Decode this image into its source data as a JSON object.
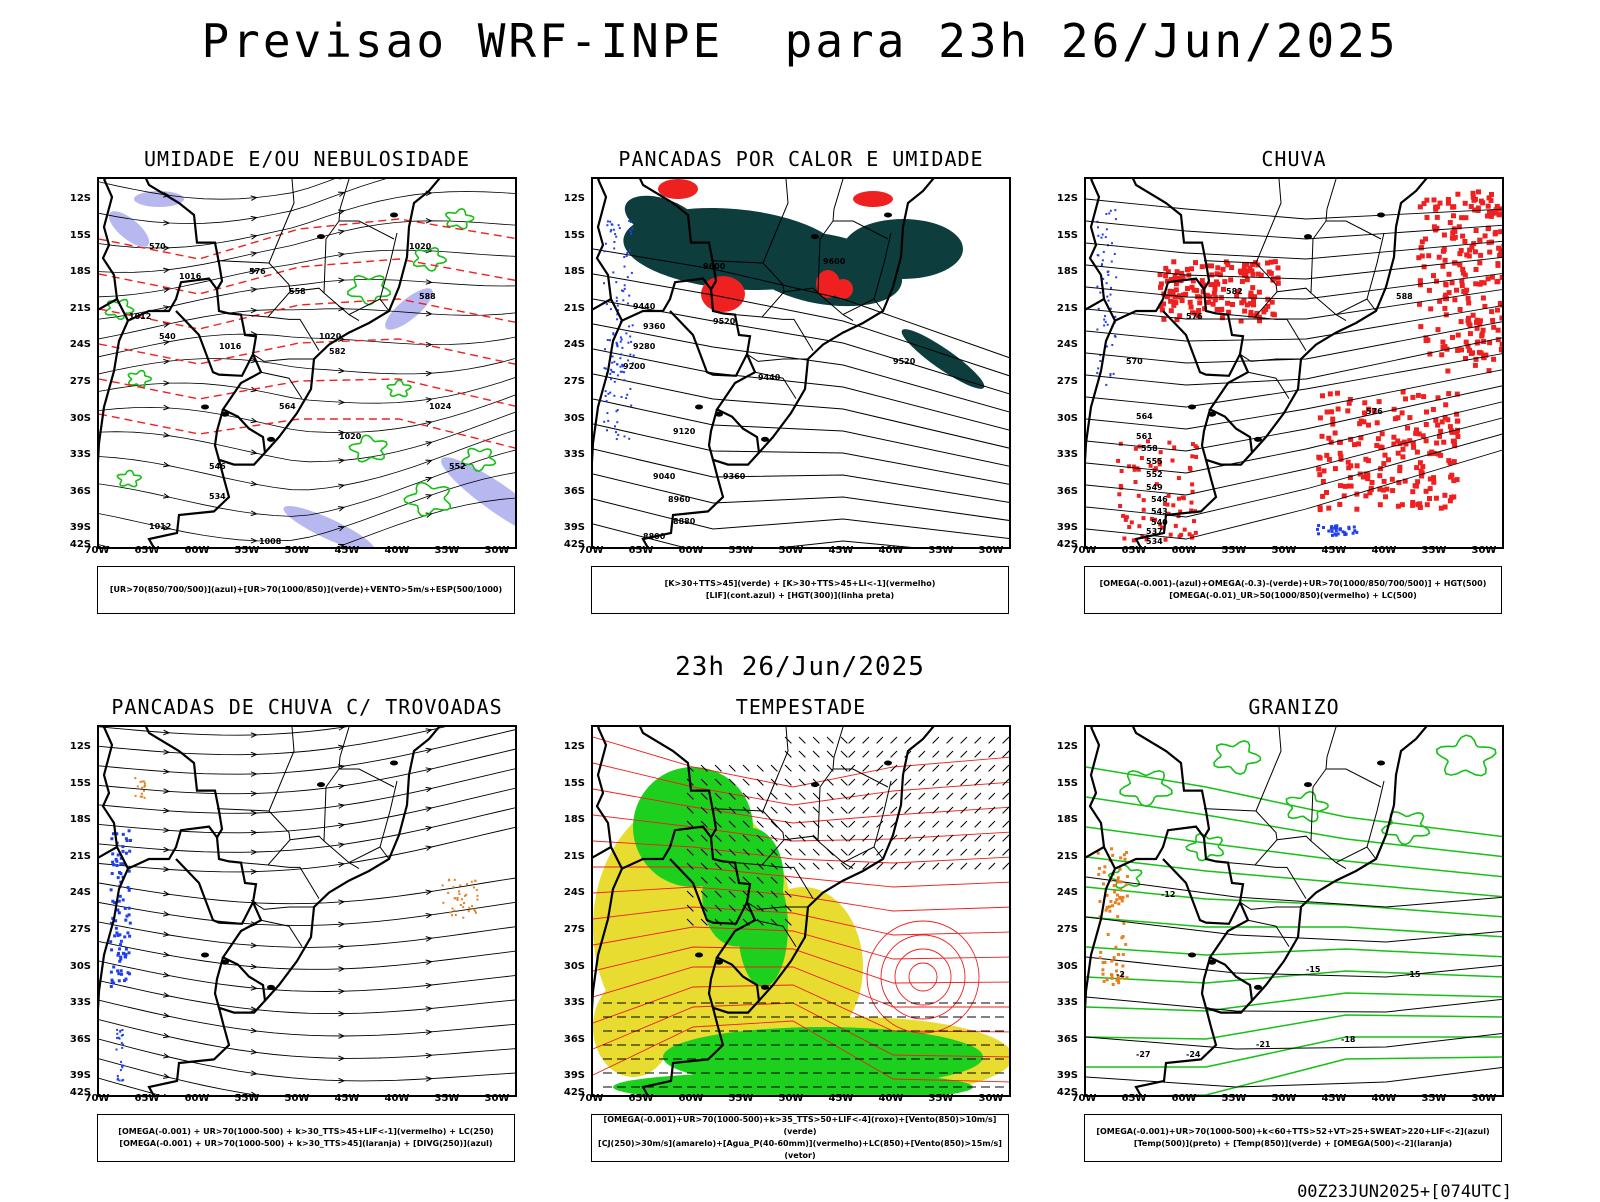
{
  "header": {
    "title": "Previsao WRF-INPE  para 23h 26/Jun/2025",
    "mid_title": "23h 26/Jun/2025",
    "footer": "00Z23JUN2025+[074UTC]"
  },
  "axes": {
    "lat_labels": [
      "12S",
      "15S",
      "18S",
      "21S",
      "24S",
      "27S",
      "30S",
      "33S",
      "36S",
      "39S",
      "42S"
    ],
    "lon_labels": [
      "70W",
      "65W",
      "60W",
      "55W",
      "50W",
      "45W",
      "40W",
      "35W",
      "30W"
    ]
  },
  "panels": [
    {
      "id": "umidade",
      "title": "UMIDADE E/OU NEBULOSIDADE",
      "legend": [
        "[UR>70(850/700/500)](azul)+[UR>70(1000/850)](verde)+VENTO>5m/s+ESP(500/1000)"
      ]
    },
    {
      "id": "pancadas",
      "title": "PANCADAS POR CALOR E UMIDADE",
      "legend": [
        "[K>30+TTS>45](verde) + [K>30+TTS>45+LI<-1](vermelho)",
        "[LIF](cont.azul) + [HGT(300)](linha preta)"
      ]
    },
    {
      "id": "chuva",
      "title": "CHUVA",
      "legend": [
        "[OMEGA(-0.001)-(azul)+OMEGA(-0.3)-(verde)+UR>70(1000/850/700/500)] + HGT(500)",
        "[OMEGA(-0.01)_UR>50(1000/850)(vermelho) + LC(500)"
      ]
    },
    {
      "id": "trovoadas",
      "title": "PANCADAS DE CHUVA C/ TROVOADAS",
      "legend": [
        "[OMEGA(-0.001) + UR>70(1000-500) + k>30_TTS>45+LIF<-1](vermelho) + LC(250)",
        "[OMEGA(-0.001) + UR>70(1000-500) + k>30_TTS>45](laranja) + [DIVG(250)](azul)"
      ]
    },
    {
      "id": "tempestade",
      "title": "TEMPESTADE",
      "legend": [
        "[OMEGA(-0.001)+UR>70(1000-500)+k>35_TTS>50+LIF<-4](roxo)+[Vento(850)>10m/s](verde)",
        "[CJ(250)>30m/s](amarelo)+[Agua_P(40-60mm)](vermelho)+LC(850)+[Vento(850)>15m/s](vetor)"
      ]
    },
    {
      "id": "granizo",
      "title": "GRANIZO",
      "legend": [
        "[OMEGA(-0.001)+UR>70(1000-500)+k<60+TTS>52+VT>25+SWEAT>220+LIF<-2](azul)",
        "[Temp(500)](preto) + [Temp(850)](verde) + [OMEGA(500)<-2](laranja)"
      ]
    }
  ],
  "contour_labels": {
    "umidade": [
      "1016",
      "1012",
      "1020",
      "1024",
      "1020",
      "1020",
      "1016",
      "1012",
      "1008",
      "564",
      "570",
      "576",
      "582",
      "588",
      "540",
      "534",
      "546",
      "552",
      "558"
    ],
    "pancadas": [
      "9600",
      "9520",
      "9440",
      "9360",
      "9280",
      "9200",
      "9120",
      "9040",
      "8960",
      "8880",
      "8800",
      "9520",
      "9600",
      "9440",
      "9360"
    ],
    "chuva": [
      "582",
      "576",
      "570",
      "564",
      "561",
      "558",
      "555",
      "552",
      "549",
      "546",
      "543",
      "540",
      "537",
      "534",
      "588",
      "576"
    ],
    "granizo": [
      "-15",
      "-12",
      "-15",
      "-18",
      "-21",
      "-24",
      "-27",
      "-2"
    ]
  },
  "colors": {
    "frame": "#000000",
    "green": "#17c017",
    "red": "#ee2020",
    "blue": "#2040ee",
    "lavender": "#b0b0f0",
    "dark_teal": "#0e3d3d",
    "yellow": "#e8dc30",
    "orange": "#e88020",
    "bright_green": "#1ed01e"
  }
}
